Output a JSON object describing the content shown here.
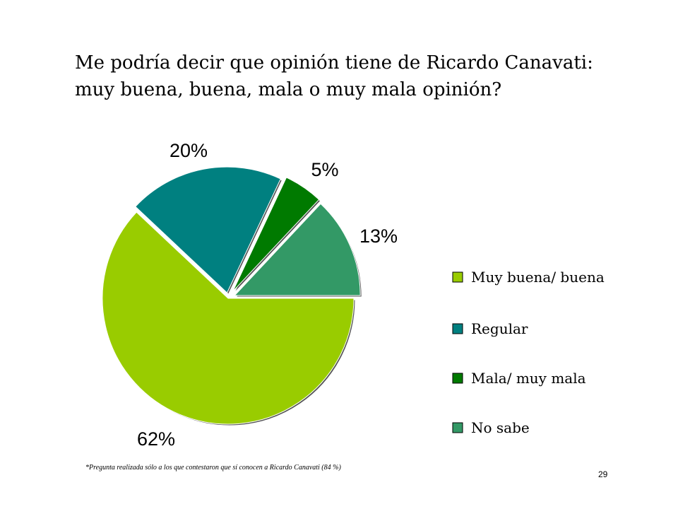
{
  "title": {
    "line1": "Me podría decir  que opinión tiene de Ricardo Canavati:",
    "line2": "muy buena, buena, mala o muy mala opinión?"
  },
  "chart_data": {
    "type": "pie",
    "legend_position": "right",
    "slices": [
      {
        "label": "Muy buena/ buena",
        "value": 62,
        "value_label": "62%",
        "color": "#99cc00"
      },
      {
        "label": "Regular",
        "value": 20,
        "value_label": "20%",
        "color": "#008080"
      },
      {
        "label": "Mala/ muy mala",
        "value": 5,
        "value_label": "5%",
        "color": "#007a00"
      },
      {
        "label": "No sabe",
        "value": 13,
        "value_label": "13%",
        "color": "#339966"
      }
    ]
  },
  "footnote": "*Pregunta realizada sólo a los que contestaron que sí conocen a Ricardo Canavati (84 %)",
  "page_number": "29"
}
